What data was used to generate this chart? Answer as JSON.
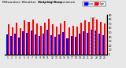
{
  "title": "Milwaukee Weather  Outdoor Temperature",
  "subtitle": "Daily High/Low",
  "background_color": "#e8e8e8",
  "plot_bg": "#e8e8e8",
  "highs": [
    68,
    62,
    72,
    60,
    78,
    75,
    80,
    70,
    65,
    73,
    82,
    68,
    64,
    70,
    76,
    62,
    66,
    64,
    72,
    77,
    75,
    83,
    80,
    74,
    70
  ],
  "lows": [
    45,
    42,
    48,
    38,
    52,
    50,
    54,
    46,
    42,
    48,
    56,
    44,
    40,
    45,
    51,
    37,
    42,
    40,
    47,
    52,
    50,
    56,
    54,
    48,
    44
  ],
  "high_color": "#ff0000",
  "low_color": "#0000ff",
  "highlight_index": 21,
  "ylim": [
    0,
    90
  ],
  "yticks": [
    0,
    10,
    20,
    30,
    40,
    50,
    60,
    70,
    80,
    90
  ],
  "legend_high": "High",
  "legend_low": "Low",
  "bar_width": 0.4
}
